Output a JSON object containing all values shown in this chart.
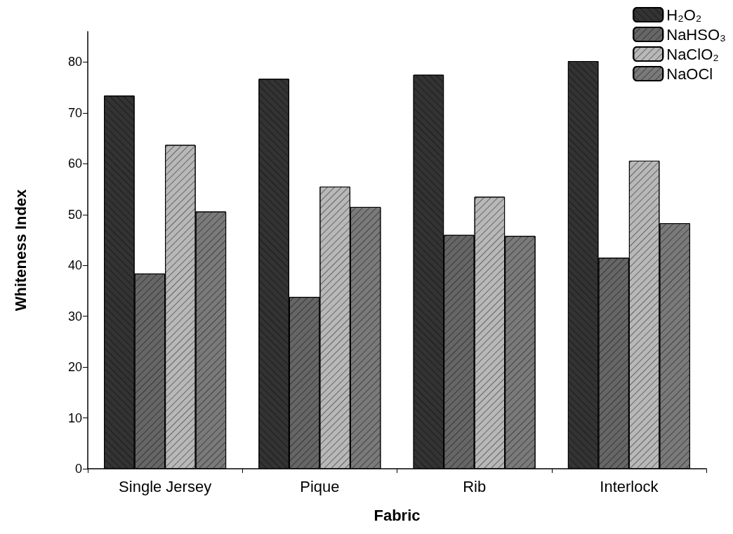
{
  "chart_data": {
    "type": "bar",
    "xlabel": "Fabric",
    "ylabel": "Whiteness Index",
    "categories": [
      "Single Jersey",
      "Pique",
      "Rib",
      "Interlock"
    ],
    "series": [
      {
        "name": "H₂O₂",
        "color": "#333333",
        "values": [
          73.4,
          76.7,
          77.5,
          80.2
        ]
      },
      {
        "name": "NaHSO₃",
        "color": "#666666",
        "values": [
          38.4,
          33.8,
          46.0,
          41.5
        ]
      },
      {
        "name": "NaClO₂",
        "color": "#b8b8b8",
        "values": [
          63.7,
          55.5,
          53.5,
          60.6
        ]
      },
      {
        "name": "NaOCl",
        "color": "#7a7a7a",
        "values": [
          50.6,
          51.5,
          45.8,
          48.3
        ]
      }
    ],
    "ylim": [
      0,
      86
    ],
    "yticks": [
      0,
      10,
      20,
      30,
      40,
      50,
      60,
      70,
      80
    ],
    "grid": false,
    "legend": "top right"
  }
}
